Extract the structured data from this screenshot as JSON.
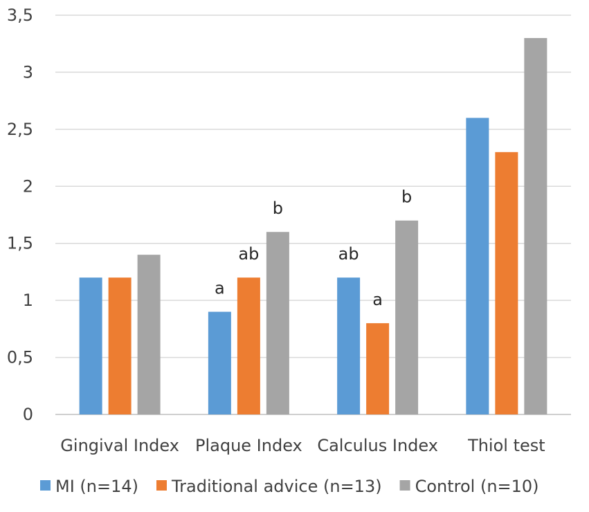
{
  "chart_data": {
    "type": "bar",
    "title": "",
    "xlabel": "",
    "ylabel": "",
    "ylim": [
      0,
      3.5
    ],
    "yticks": [
      "0",
      "0,5",
      "1",
      "1,5",
      "2",
      "2,5",
      "3",
      "3,5"
    ],
    "grid": true,
    "legend_position": "bottom",
    "categories": [
      "Gingival Index",
      "Plaque Index",
      "Calculus Index",
      "Thiol test"
    ],
    "series": [
      {
        "name": "MI (n=14)",
        "color": "#5b9bd5",
        "values": [
          1.2,
          0.9,
          1.2,
          2.6
        ],
        "annotations": [
          "",
          "a",
          "ab",
          ""
        ]
      },
      {
        "name": "Traditional advice (n=13)",
        "color": "#ed7d31",
        "values": [
          1.2,
          1.2,
          0.8,
          2.3
        ],
        "annotations": [
          "",
          "ab",
          "a",
          ""
        ]
      },
      {
        "name": "Control (n=10)",
        "color": "#a5a5a5",
        "values": [
          1.4,
          1.6,
          1.7,
          3.3
        ],
        "annotations": [
          "",
          "b",
          "b",
          ""
        ]
      }
    ]
  }
}
